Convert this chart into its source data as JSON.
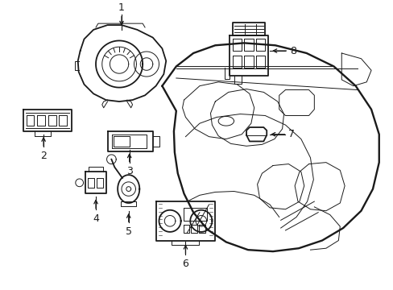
{
  "background_color": "#ffffff",
  "line_color": "#1a1a1a",
  "lw_main": 1.3,
  "lw_thin": 0.7,
  "figsize": [
    4.89,
    3.6
  ],
  "dpi": 100
}
